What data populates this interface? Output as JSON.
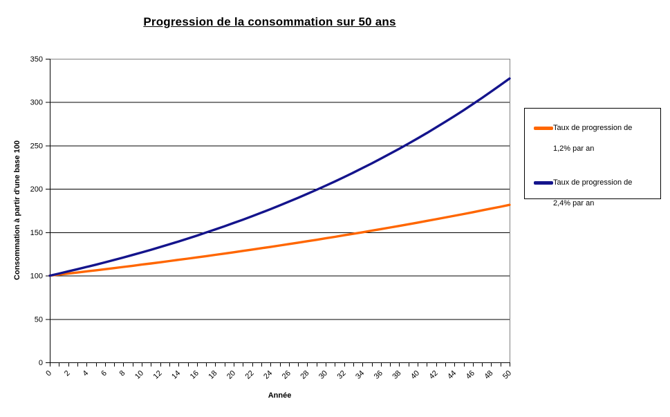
{
  "title": "Progression de la consommation sur 50 ans",
  "colors": {
    "series1": "#FF6600",
    "series2": "#14148C",
    "gridline": "#000000",
    "axis": "#000000",
    "plot_border": "#808080",
    "background": "#FFFFFF",
    "legend_border": "#000000",
    "text": "#000000"
  },
  "x_axis": {
    "title": "Année",
    "min": 0,
    "max": 50,
    "tick_every_years": 1,
    "label_every_years": 2,
    "tick_labels": [
      "0",
      "2",
      "4",
      "6",
      "8",
      "10",
      "12",
      "14",
      "16",
      "18",
      "20",
      "22",
      "24",
      "26",
      "28",
      "30",
      "32",
      "34",
      "36",
      "38",
      "40",
      "42",
      "44",
      "46",
      "48",
      "50"
    ]
  },
  "y_axis": {
    "title": "Consommation à partir d'une base 100",
    "min": 0,
    "max": 350,
    "step": 50,
    "tick_labels": [
      "0",
      "50",
      "100",
      "150",
      "200",
      "250",
      "300",
      "350"
    ]
  },
  "legend": {
    "items": [
      {
        "label_line1": "Taux de progression de",
        "label_line2": "1,2% par an",
        "color": "#FF6600"
      },
      {
        "label_line1": "Taux de progression de",
        "label_line2": "2,4% par an",
        "color": "#14148C"
      }
    ]
  },
  "chart_data": {
    "type": "line",
    "title": "Progression de la consommation sur 50 ans",
    "xlabel": "Année",
    "ylabel": "Consommation à partir d'une base 100",
    "xlim": [
      0,
      50
    ],
    "ylim": [
      0,
      350
    ],
    "grid": "horizontal",
    "legend_position": "right",
    "x": [
      0,
      1,
      2,
      3,
      4,
      5,
      6,
      7,
      8,
      9,
      10,
      11,
      12,
      13,
      14,
      15,
      16,
      17,
      18,
      19,
      20,
      21,
      22,
      23,
      24,
      25,
      26,
      27,
      28,
      29,
      30,
      31,
      32,
      33,
      34,
      35,
      36,
      37,
      38,
      39,
      40,
      41,
      42,
      43,
      44,
      45,
      46,
      47,
      48,
      49,
      50
    ],
    "series": [
      {
        "name": "Taux de progression de 1,2% par an",
        "color": "#FF6600",
        "growth_rate_percent_per_year": 1.2,
        "base": 100,
        "values": [
          100,
          101.2,
          102.4,
          103.6,
          104.9,
          106.1,
          107.4,
          108.7,
          110.0,
          111.3,
          112.7,
          114.0,
          115.4,
          116.8,
          118.2,
          119.6,
          121.0,
          122.5,
          124.0,
          125.4,
          126.9,
          128.5,
          130.0,
          131.6,
          133.1,
          134.7,
          136.4,
          138.0,
          139.7,
          141.3,
          143.0,
          144.7,
          146.5,
          148.2,
          150.0,
          151.8,
          153.6,
          155.5,
          157.3,
          159.2,
          161.1,
          163.1,
          165.0,
          167.0,
          169.0,
          171.0,
          173.1,
          175.2,
          177.3,
          179.4,
          181.6
        ]
      },
      {
        "name": "Taux de progression de 2,4% par an",
        "color": "#14148C",
        "growth_rate_percent_per_year": 2.4,
        "base": 100,
        "values": [
          100,
          102.4,
          104.9,
          107.4,
          110.0,
          112.6,
          115.3,
          118.1,
          120.9,
          123.8,
          126.8,
          129.8,
          132.9,
          136.1,
          139.4,
          142.7,
          146.1,
          149.7,
          153.2,
          156.9,
          160.7,
          164.5,
          168.5,
          172.5,
          176.7,
          180.9,
          185.3,
          189.7,
          194.3,
          198.9,
          203.7,
          208.6,
          213.6,
          218.7,
          224.0,
          229.3,
          234.9,
          240.5,
          246.3,
          252.2,
          258.2,
          264.4,
          270.8,
          277.3,
          283.9,
          290.7,
          297.7,
          304.9,
          312.2,
          319.7,
          327.3
        ]
      }
    ]
  }
}
